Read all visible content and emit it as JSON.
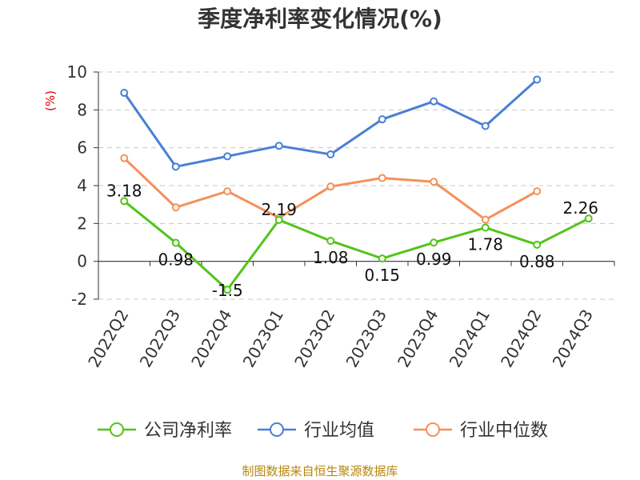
{
  "chart_data": {
    "type": "line",
    "title": "季度净利率变化情况(%)",
    "ylabel": "(%)",
    "ylim": [
      -2,
      10
    ],
    "yticks": [
      -2,
      0,
      2,
      4,
      6,
      8,
      10
    ],
    "categories": [
      "2022Q2",
      "2022Q3",
      "2022Q4",
      "2023Q1",
      "2023Q2",
      "2023Q3",
      "2023Q4",
      "2024Q1",
      "2024Q2",
      "2024Q3"
    ],
    "grid": true,
    "legend_position": "bottom",
    "series": [
      {
        "name": "公司净利率",
        "color": "#52c41a",
        "values": [
          3.18,
          0.98,
          -1.5,
          2.19,
          1.08,
          0.15,
          0.99,
          1.78,
          0.88,
          2.26
        ],
        "labels": [
          "3.18",
          "0.98",
          "-1.5",
          "2.19",
          "1.08",
          "0.15",
          "0.99",
          "1.78",
          "0.88",
          "2.26"
        ]
      },
      {
        "name": "行业均值",
        "color": "#4a7fd6",
        "values": [
          8.9,
          5.0,
          5.55,
          6.1,
          5.65,
          7.5,
          8.45,
          7.15,
          9.6,
          null
        ]
      },
      {
        "name": "行业中位数",
        "color": "#f5905a",
        "values": [
          5.45,
          2.85,
          3.7,
          2.3,
          3.95,
          4.4,
          4.2,
          2.2,
          3.7,
          null
        ]
      }
    ]
  },
  "footer": {
    "source": "制图数据来自恒生聚源数据库"
  }
}
